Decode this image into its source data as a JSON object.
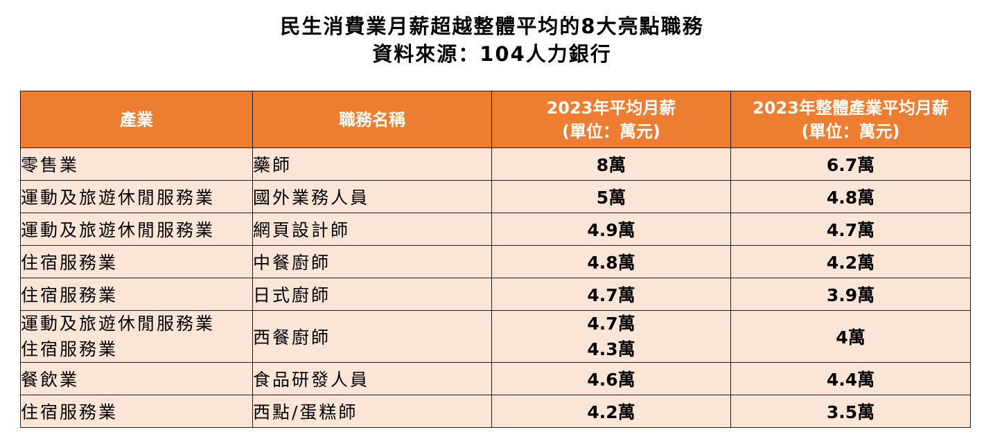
{
  "title": {
    "line1": "民生消費業月薪超越整體平均的8大亮點職務",
    "line2": "資料來源：104人力銀行"
  },
  "table": {
    "headers": {
      "industry": "產業",
      "job": "職務名稱",
      "avg_salary_line1": "2023年平均月薪",
      "avg_salary_line2": "(單位：萬元)",
      "overall_line1": "2023年整體產業平均月薪",
      "overall_line2": "(單位：萬元)"
    },
    "rows": [
      {
        "industry": [
          "零售業"
        ],
        "job": "藥師",
        "avg": [
          "8萬"
        ],
        "overall": "6.7萬"
      },
      {
        "industry": [
          "運動及旅遊休閒服務業"
        ],
        "job": "國外業務人員",
        "avg": [
          "5萬"
        ],
        "overall": "4.8萬"
      },
      {
        "industry": [
          "運動及旅遊休閒服務業"
        ],
        "job": "網頁設計師",
        "avg": [
          "4.9萬"
        ],
        "overall": "4.7萬"
      },
      {
        "industry": [
          "住宿服務業"
        ],
        "job": "中餐廚師",
        "avg": [
          "4.8萬"
        ],
        "overall": "4.2萬"
      },
      {
        "industry": [
          "住宿服務業"
        ],
        "job": "日式廚師",
        "avg": [
          "4.7萬"
        ],
        "overall": "3.9萬"
      },
      {
        "industry": [
          "運動及旅遊休閒服務業",
          "住宿服務業"
        ],
        "job": "西餐廚師",
        "avg": [
          "4.7萬",
          "4.3萬"
        ],
        "overall": "4萬"
      },
      {
        "industry": [
          "餐飲業"
        ],
        "job": "食品研發人員",
        "avg": [
          "4.6萬"
        ],
        "overall": "4.4萬"
      },
      {
        "industry": [
          "住宿服務業"
        ],
        "job": "西點/蛋糕師",
        "avg": [
          "4.2萬"
        ],
        "overall": "3.5萬"
      }
    ]
  },
  "colors": {
    "header_bg": "#ed7d31",
    "cell_bg": "#fbe5d6"
  }
}
